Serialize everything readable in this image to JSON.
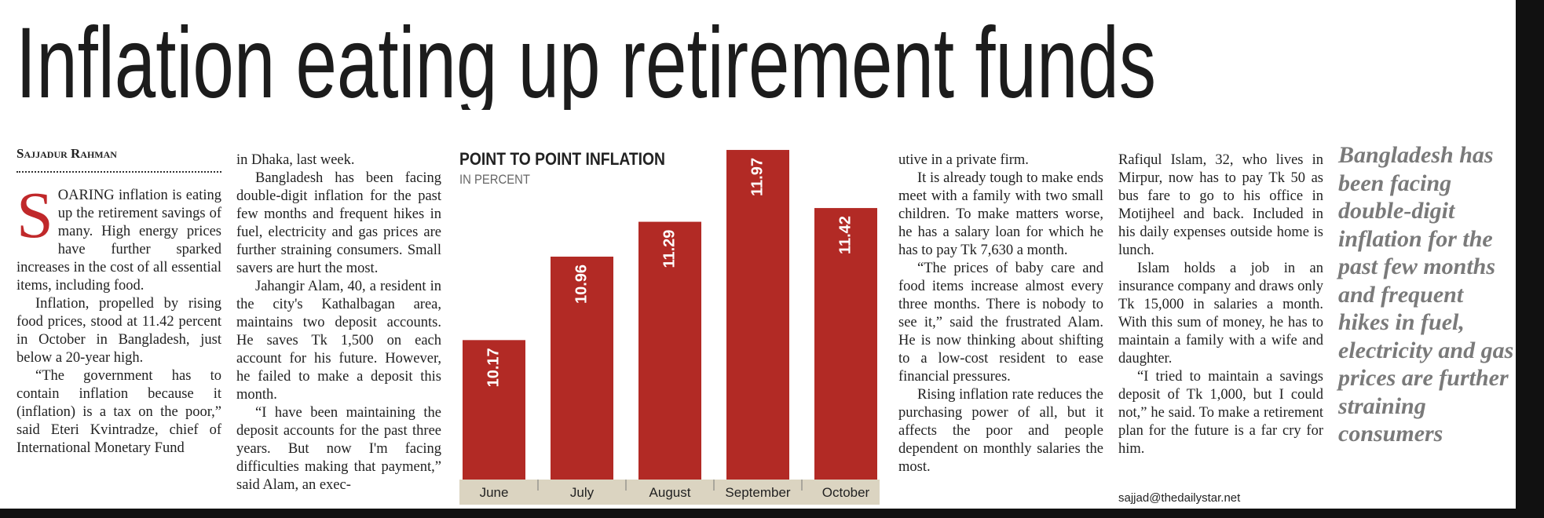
{
  "headline": "Inflation eating up retirement funds",
  "byline": "Sajjadur Rahman",
  "drop_cap": "S",
  "columns": [
    [
      "OARING inflation is eating up the retirement savings of many. High energy prices have further sparked increases in the cost of all essential items, including food.",
      "Inflation, propelled by rising food prices, stood at 11.42 percent in October in Bangladesh, just below a 20-year high.",
      "“The government has to contain inflation because it (inflation) is a tax on the poor,” said Eteri Kvintradze, chief of International Monetary Fund"
    ],
    [
      "in Dhaka, last week.",
      "Bangladesh has been facing double-digit inflation for the past few months and frequent hikes in fuel, electricity and gas prices are further straining consumers. Small savers are hurt the most.",
      "Jahangir Alam, 40, a resident in the city's Kathalbagan area, maintains two deposit accounts. He saves Tk 1,500 on each account for his future. However, he failed to make a deposit this month.",
      "“I have been maintaining the deposit accounts for the past three years. But now I'm facing difficulties making that payment,” said Alam, an exec-"
    ],
    [
      "utive in a private firm.",
      "It is already tough to make ends meet with a family with two small children. To make matters worse, he has a salary loan for which he has to pay Tk 7,630 a month.",
      "“The prices of baby care and food items increase almost every three months. There is nobody to see it,” said the frustrated Alam. He is now thinking about shifting to a low-cost resident to ease financial pressures.",
      "Rising inflation rate reduces the purchasing power of all, but it affects the poor and people dependent on monthly salaries the most."
    ],
    [
      "Rafiqul Islam, 32, who lives in Mirpur, now has to pay Tk 50 as bus fare to go to his office in Motijheel and back. Included in his daily expenses outside home is lunch.",
      "Islam holds a job in an insurance company and draws only Tk 15,000 in salaries a month. With this sum of money, he has to maintain a family with a wife and daughter.",
      "“I tried to maintain a savings deposit of Tk 1,000, but I could not,” he said. To make a retirement plan for the future is a far cry for him."
    ]
  ],
  "email": "sajjad@thedailystar.net",
  "pull_quote": "Bangladesh has been facing double-digit inflation for the past few months and frequent hikes in fuel, electricity and gas prices are further straining consumers",
  "chart_data": {
    "type": "bar",
    "title": "POINT TO POINT INFLATION",
    "subtitle": "IN PERCENT",
    "categories": [
      "June",
      "July",
      "August",
      "September",
      "October"
    ],
    "values": [
      10.17,
      10.96,
      11.29,
      11.97,
      11.42
    ],
    "color": "#b22a25",
    "ylim": [
      8.85,
      12
    ]
  }
}
